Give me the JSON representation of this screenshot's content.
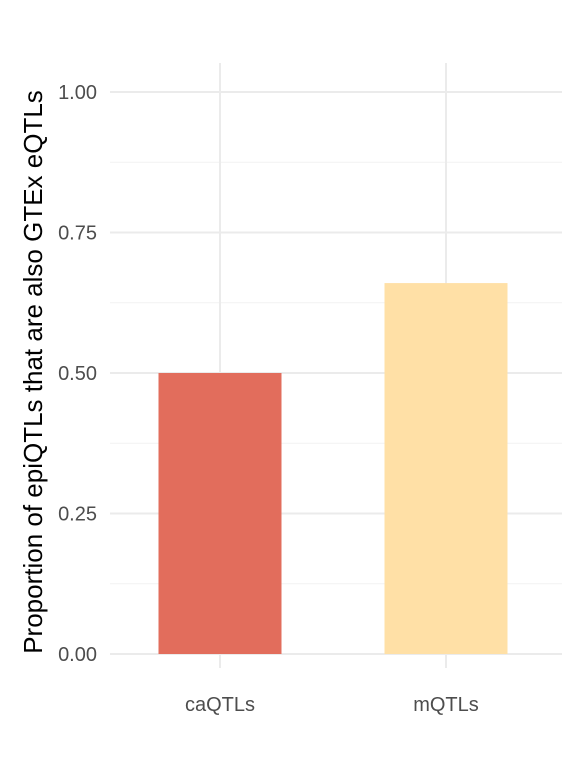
{
  "chart_data": {
    "type": "bar",
    "categories": [
      "caQTLs",
      "mQTLs"
    ],
    "values": [
      0.5,
      0.66
    ],
    "colors": [
      "#e26d5c",
      "#ffe0a6"
    ],
    "title": "",
    "xlabel": "",
    "ylabel": "Proportion of epiQTLs that are also GTEx eQTLs",
    "ylim": [
      0,
      1.05
    ],
    "yticks": [
      0,
      0.25,
      0.5,
      0.75,
      1.0
    ],
    "ytick_labels": [
      "0.00",
      "0.25",
      "0.50",
      "0.75",
      "1.00"
    ],
    "grid": true,
    "legend": "none"
  }
}
